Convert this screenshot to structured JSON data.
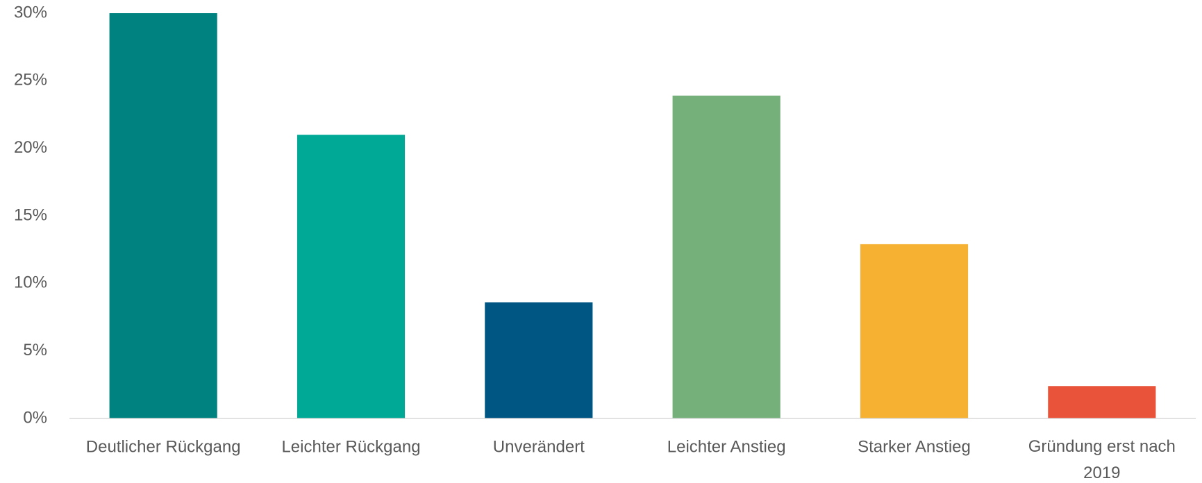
{
  "chart_data": {
    "type": "bar",
    "categories": [
      "Deutlicher Rückgang",
      "Leichter Rückgang",
      "Unverändert",
      "Leichter Anstieg",
      "Starker Anstieg",
      "Gründung erst nach 2019"
    ],
    "values": [
      30,
      21,
      8.6,
      23.9,
      12.9,
      2.4
    ],
    "colors": [
      "#008281",
      "#00a996",
      "#005682",
      "#75b07a",
      "#f6b133",
      "#e8533a"
    ],
    "ylim": [
      0,
      30
    ],
    "yticks": [
      {
        "value": 0,
        "label": "0%"
      },
      {
        "value": 5,
        "label": "5%"
      },
      {
        "value": 10,
        "label": "10%"
      },
      {
        "value": 15,
        "label": "15%"
      },
      {
        "value": 20,
        "label": "20%"
      },
      {
        "value": 25,
        "label": "25%"
      },
      {
        "value": 30,
        "label": "30%"
      }
    ],
    "grid": false
  }
}
